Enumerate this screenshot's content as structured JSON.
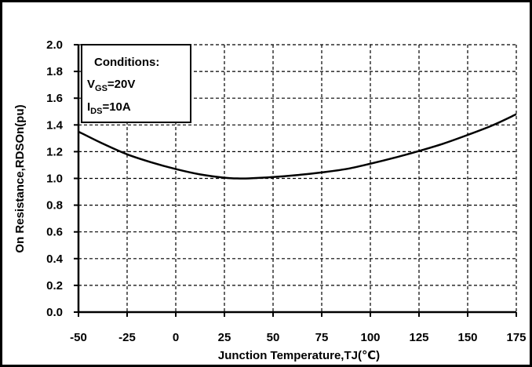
{
  "chart_data": {
    "type": "line",
    "title": "",
    "xlabel": "Junction Temperature,TJ(℃)",
    "ylabel": "On Resistance,RDSOn(pu)",
    "xlim": [
      -50,
      175
    ],
    "ylim": [
      0.0,
      2.0
    ],
    "x_ticks": [
      "-50",
      "-25",
      "0",
      "25",
      "50",
      "75",
      "100",
      "125",
      "150",
      "175"
    ],
    "y_ticks": [
      "0.0",
      "0.2",
      "0.4",
      "0.6",
      "0.8",
      "1.0",
      "1.2",
      "1.4",
      "1.6",
      "1.8",
      "2.0"
    ],
    "grid": true,
    "grid_style": "dashed",
    "series": [
      {
        "color": "#000000",
        "x": [
          -50,
          -37.5,
          -25,
          -12.5,
          0,
          12.5,
          25,
          31,
          37.5,
          50,
          62.5,
          75,
          87.5,
          100,
          112.5,
          125,
          137.5,
          150,
          162.5,
          175
        ],
        "y": [
          1.35,
          1.26,
          1.18,
          1.12,
          1.07,
          1.03,
          1.005,
          1.0,
          1.0,
          1.01,
          1.025,
          1.045,
          1.07,
          1.11,
          1.155,
          1.205,
          1.26,
          1.325,
          1.395,
          1.48
        ]
      }
    ],
    "annotation": {
      "title": "Conditions:",
      "lines": [
        {
          "prefix": "V",
          "sub": "GS",
          "suffix": "=20V"
        },
        {
          "prefix": "I",
          "sub": "DS",
          "suffix": "=10A"
        }
      ],
      "placement": "top-left"
    }
  }
}
